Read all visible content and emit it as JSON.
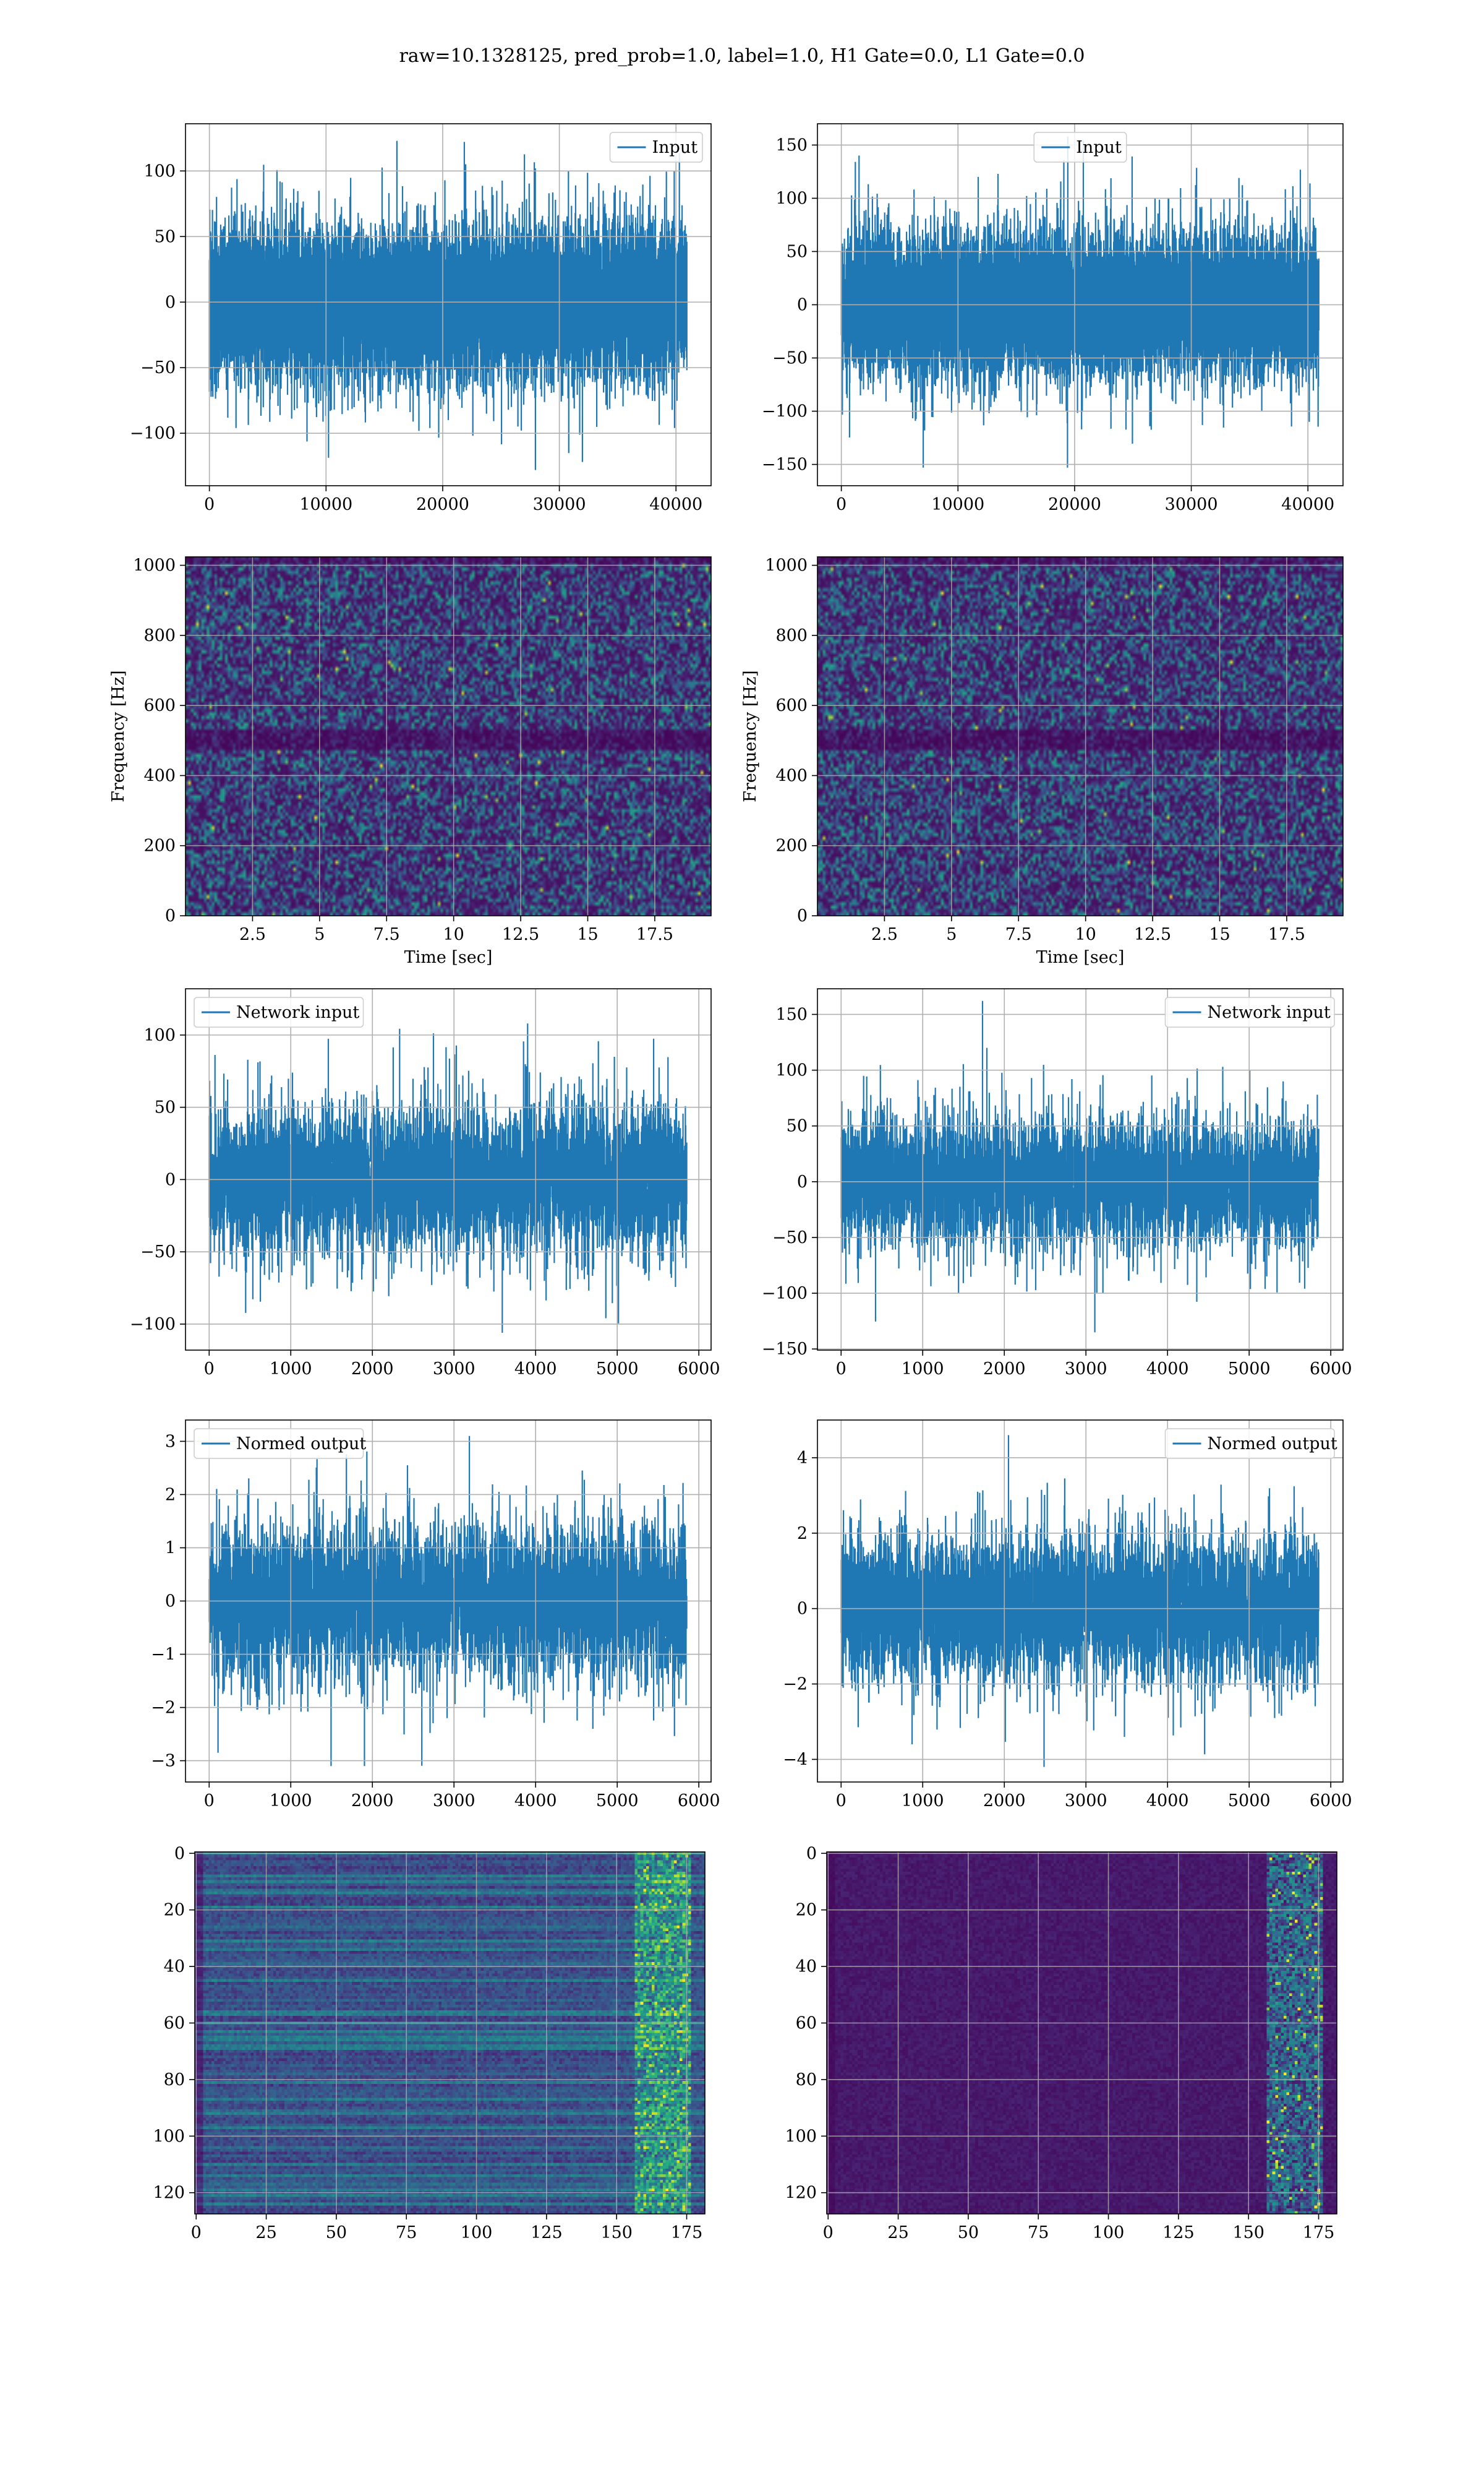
{
  "title": "raw=10.1328125, pred_prob=1.0, label=1.0, H1 Gate=0.0, L1 Gate=0.0",
  "colors": {
    "line": "#1f77b4",
    "grid": "#b0b0b0",
    "viridis_dark": "#440154",
    "viridis_mid": "#21918c",
    "viridis_bright": "#fde725"
  },
  "chart_data": [
    {
      "id": "h1-input",
      "type": "line",
      "panel": "r0c0",
      "series": [
        {
          "name": "Input",
          "n_points": 40960,
          "sigma": 27,
          "peak_max": 123,
          "peak_min": -128
        }
      ],
      "xlim": [
        -2048,
        43008
      ],
      "ylim": [
        -140,
        136
      ],
      "xticks": [
        0,
        10000,
        20000,
        30000,
        40000
      ],
      "yticks": [
        -100,
        -50,
        0,
        50,
        100
      ],
      "xlabel": "",
      "ylabel": "",
      "legend": "upper right",
      "grid": true
    },
    {
      "id": "l1-input",
      "type": "line",
      "panel": "r0c1",
      "series": [
        {
          "name": "Input",
          "n_points": 40960,
          "sigma": 31,
          "peak_max": 158,
          "peak_min": -153
        }
      ],
      "xlim": [
        -2048,
        43008
      ],
      "ylim": [
        -170,
        170
      ],
      "xticks": [
        0,
        10000,
        20000,
        30000,
        40000
      ],
      "yticks": [
        -150,
        -100,
        -50,
        0,
        50,
        100,
        150
      ],
      "xlabel": "",
      "ylabel": "",
      "legend": "upper center",
      "grid": true
    },
    {
      "id": "h1-spectrogram",
      "type": "heatmap",
      "panel": "r1c0",
      "xlim": [
        0,
        19.6
      ],
      "ylim": [
        0,
        1024
      ],
      "xticks": [
        2.5,
        5.0,
        7.5,
        10.0,
        12.5,
        15.0,
        17.5
      ],
      "yticks": [
        0,
        200,
        400,
        600,
        800,
        1000
      ],
      "xlabel": "Time [sec]",
      "ylabel": "Frequency [Hz]",
      "colormap": "viridis",
      "grid": true
    },
    {
      "id": "l1-spectrogram",
      "type": "heatmap",
      "panel": "r1c1",
      "xlim": [
        0,
        19.6
      ],
      "ylim": [
        0,
        1024
      ],
      "xticks": [
        2.5,
        5.0,
        7.5,
        10.0,
        12.5,
        15.0,
        17.5
      ],
      "yticks": [
        0,
        200,
        400,
        600,
        800,
        1000
      ],
      "xlabel": "Time [sec]",
      "ylabel": "Frequency [Hz]",
      "colormap": "viridis",
      "grid": true
    },
    {
      "id": "h1-network-input",
      "type": "line",
      "panel": "r2c0",
      "series": [
        {
          "name": "Network input",
          "n_points": 5856,
          "sigma": 24,
          "peak_max": 108,
          "peak_min": -106
        }
      ],
      "xlim": [
        -290,
        6150
      ],
      "ylim": [
        -118,
        132
      ],
      "xticks": [
        0,
        1000,
        2000,
        3000,
        4000,
        5000,
        6000
      ],
      "yticks": [
        -100,
        -50,
        0,
        50,
        100
      ],
      "xlabel": "",
      "ylabel": "",
      "legend": "upper left",
      "grid": true
    },
    {
      "id": "l1-network-input",
      "type": "line",
      "panel": "r2c1",
      "series": [
        {
          "name": "Network input",
          "n_points": 5856,
          "sigma": 28,
          "peak_max": 162,
          "peak_min": -135
        }
      ],
      "xlim": [
        -290,
        6150
      ],
      "ylim": [
        -151,
        173
      ],
      "xticks": [
        0,
        1000,
        2000,
        3000,
        4000,
        5000,
        6000
      ],
      "yticks": [
        -150,
        -100,
        -50,
        0,
        50,
        100,
        150
      ],
      "xlabel": "",
      "ylabel": "",
      "legend": "upper right",
      "grid": true
    },
    {
      "id": "h1-normed-output",
      "type": "line",
      "panel": "r3c0",
      "series": [
        {
          "name": "Normed output",
          "n_points": 5856,
          "sigma": 0.68,
          "peak_max": 3.1,
          "peak_min": -3.1
        }
      ],
      "xlim": [
        -290,
        6150
      ],
      "ylim": [
        -3.4,
        3.4
      ],
      "xticks": [
        0,
        1000,
        2000,
        3000,
        4000,
        5000,
        6000
      ],
      "yticks": [
        -3,
        -2,
        -1,
        0,
        1,
        2,
        3
      ],
      "xlabel": "",
      "ylabel": "",
      "legend": "upper left",
      "grid": true
    },
    {
      "id": "l1-normed-output",
      "type": "line",
      "panel": "r3c1",
      "series": [
        {
          "name": "Normed output",
          "n_points": 5856,
          "sigma": 0.95,
          "peak_max": 4.6,
          "peak_min": -4.2
        }
      ],
      "xlim": [
        -290,
        6150
      ],
      "ylim": [
        -4.6,
        5.0
      ],
      "xticks": [
        0,
        1000,
        2000,
        3000,
        4000,
        5000,
        6000
      ],
      "yticks": [
        -4,
        -2,
        0,
        2,
        4
      ],
      "xlabel": "",
      "ylabel": "",
      "legend": "upper right",
      "grid": true
    },
    {
      "id": "h1-feature-map",
      "type": "heatmap",
      "panel": "r4c0",
      "xlim": [
        -0.5,
        181.5
      ],
      "ylim": [
        127.5,
        -0.5
      ],
      "xticks": [
        0,
        25,
        50,
        75,
        100,
        125,
        150,
        175
      ],
      "yticks": [
        0,
        20,
        40,
        60,
        80,
        100,
        120
      ],
      "xlabel": "",
      "ylabel": "",
      "colormap": "viridis",
      "grid": true,
      "y_inverted": true
    },
    {
      "id": "l1-feature-map",
      "type": "heatmap",
      "panel": "r4c1",
      "xlim": [
        -0.5,
        181.5
      ],
      "ylim": [
        127.5,
        -0.5
      ],
      "xticks": [
        0,
        25,
        50,
        75,
        100,
        125,
        150,
        175
      ],
      "yticks": [
        0,
        20,
        40,
        60,
        80,
        100,
        120
      ],
      "xlabel": "",
      "ylabel": "",
      "colormap": "viridis",
      "grid": true,
      "y_inverted": true
    }
  ]
}
